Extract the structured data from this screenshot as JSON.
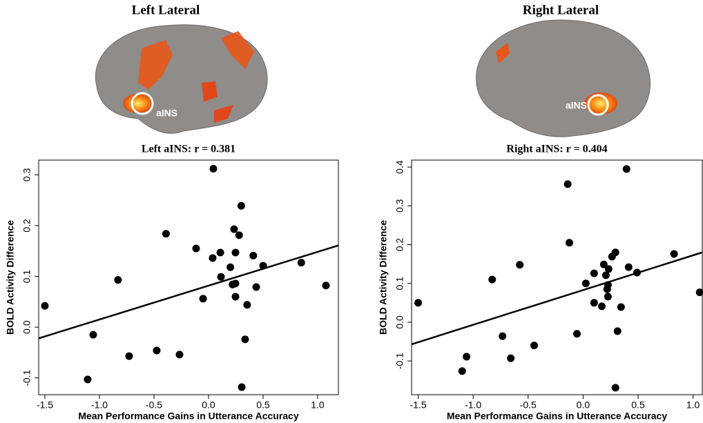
{
  "brains": [
    {
      "title": "Left Lateral",
      "label": "aINS"
    },
    {
      "title": "Right Lateral",
      "label": "aINS"
    }
  ],
  "chart_data": [
    {
      "type": "scatter",
      "title": "Left aINS: r = 0.381",
      "x_label": "Mean Performance Gains in Utterance Accuracy",
      "y_label": "BOLD Activity Difference",
      "color": "#000000",
      "xlim": [
        -1.557,
        1.19
      ],
      "ylim": [
        -0.133,
        0.329
      ],
      "xticks": [
        -1.5,
        {
          "value": -1,
          "label": "-1.0"
        },
        -0.5,
        {
          "value": 0,
          "label": "0.0"
        },
        0.5,
        {
          "value": 1,
          "label": "1.0"
        }
      ],
      "yticks": [
        -0.1,
        {
          "value": 0,
          "label": "0.0"
        },
        0.1,
        0.2,
        0.3
      ],
      "x": [
        -1.5,
        0.044,
        0.3,
        -0.39,
        0.234,
        0.28,
        -0.114,
        0.108,
        0.247,
        0.038,
        0.41,
        0.2,
        0.5,
        0.85,
        -0.83,
        0.114,
        1.076,
        0.437,
        0.22,
        0.247,
        -0.05,
        0.247,
        0.354,
        -1.057,
        0.335,
        -0.475,
        -0.728,
        -0.266,
        -1.108,
        0.304
      ],
      "values": [
        0.042,
        0.312,
        0.239,
        0.184,
        0.193,
        0.181,
        0.155,
        0.147,
        0.147,
        0.136,
        0.141,
        0.118,
        0.121,
        0.127,
        0.093,
        0.099,
        0.082,
        0.079,
        0.084,
        0.086,
        0.056,
        0.06,
        0.044,
        -0.015,
        -0.024,
        -0.046,
        -0.057,
        -0.054,
        -0.103,
        -0.118
      ],
      "fit": {
        "x": [
          -1.557,
          1.19
        ],
        "y": [
          -0.022,
          0.161
        ]
      }
    },
    {
      "type": "scatter",
      "title": "Right aINS: r = 0.404",
      "x_label": "Mean Performance Gains in Utterance Accuracy",
      "y_label": "BOLD Activity Difference",
      "color": "#000000",
      "xlim": [
        -1.56,
        1.084
      ],
      "ylim": [
        -0.187,
        0.418
      ],
      "xticks": [
        -1.5,
        {
          "value": -1,
          "label": "-1.0"
        },
        -0.5,
        {
          "value": 0,
          "label": "0.0"
        },
        0.5,
        {
          "value": 1,
          "label": "1.0"
        }
      ],
      "yticks": [
        -0.1,
        {
          "value": 0,
          "label": "0.0"
        },
        0.1,
        0.2,
        0.3,
        0.4
      ],
      "x": [
        -1.5,
        0.395,
        -0.14,
        -0.125,
        -0.576,
        0.294,
        -0.827,
        0.188,
        0.414,
        0.827,
        0.263,
        0.232,
        0.1,
        0.207,
        0.226,
        0.219,
        0.49,
        0.025,
        0.1,
        0.17,
        0.345,
        0.226,
        1.06,
        -0.056,
        0.313,
        -0.733,
        -0.445,
        -1.06,
        -0.658,
        -1.1,
        0.294
      ],
      "values": [
        0.05,
        0.395,
        0.356,
        0.205,
        0.148,
        0.18,
        0.11,
        0.149,
        0.142,
        0.176,
        0.169,
        0.137,
        0.126,
        0.121,
        0.096,
        0.085,
        0.128,
        0.1,
        0.05,
        0.041,
        0.039,
        0.066,
        0.077,
        -0.03,
        -0.023,
        -0.036,
        -0.06,
        -0.089,
        -0.093,
        -0.126,
        -0.169
      ],
      "fit": {
        "x": [
          -1.56,
          1.084
        ],
        "y": [
          -0.057,
          0.18
        ]
      }
    }
  ]
}
